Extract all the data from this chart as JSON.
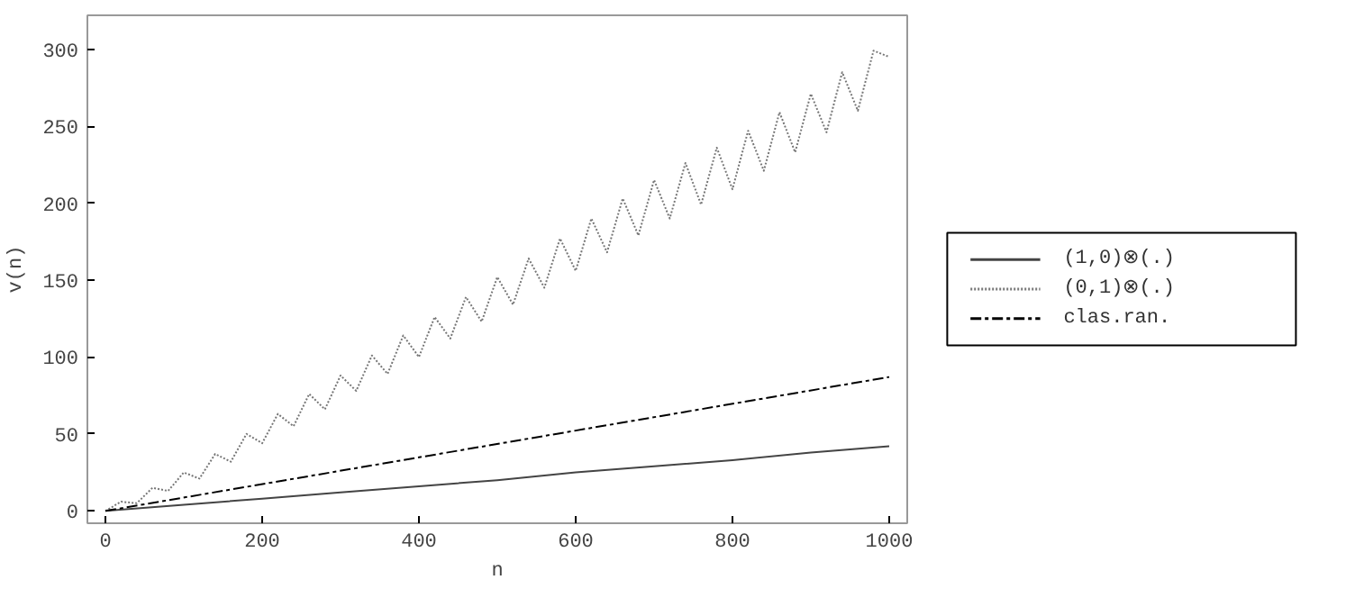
{
  "chart_data": {
    "type": "line",
    "xlabel": "n",
    "ylabel": "v(n)",
    "xlim": [
      -23,
      1023
    ],
    "ylim": [
      -8,
      322
    ],
    "xticks": [
      0,
      200,
      400,
      600,
      800,
      1000
    ],
    "yticks": [
      0,
      50,
      100,
      150,
      200,
      250,
      300
    ],
    "grid": false,
    "legend": "right",
    "marker": "none",
    "series": [
      {
        "name": "(1,0)⊗(.)",
        "color": "#444444",
        "line_style": "solid",
        "x": [
          0,
          100,
          200,
          300,
          400,
          500,
          600,
          700,
          800,
          900,
          1000
        ],
        "values": [
          0,
          4,
          8,
          12,
          16,
          20,
          25,
          29,
          33,
          38,
          42
        ]
      },
      {
        "name": "(0,1)⊗(.)",
        "color": "#777777",
        "line_style": "dotted",
        "x": [
          0,
          20,
          40,
          60,
          80,
          100,
          120,
          140,
          160,
          180,
          200,
          220,
          240,
          260,
          280,
          300,
          320,
          340,
          360,
          380,
          400,
          420,
          440,
          460,
          480,
          500,
          520,
          540,
          560,
          580,
          600,
          620,
          640,
          660,
          680,
          700,
          720,
          740,
          760,
          780,
          800,
          820,
          840,
          860,
          880,
          900,
          920,
          940,
          960,
          980,
          1000
        ],
        "values": [
          0,
          6,
          5,
          15,
          13,
          25,
          21,
          37,
          32,
          50,
          44,
          63,
          55,
          76,
          66,
          88,
          78,
          101,
          89,
          114,
          100,
          126,
          112,
          139,
          123,
          152,
          134,
          164,
          145,
          177,
          156,
          190,
          168,
          203,
          179,
          215,
          190,
          226,
          199,
          236,
          209,
          247,
          221,
          259,
          233,
          271,
          246,
          285,
          260,
          299,
          295
        ]
      },
      {
        "name": "clas.ran.",
        "color": "#000000",
        "line_style": "dashdot",
        "x": [
          0,
          1000
        ],
        "values": [
          0,
          87
        ]
      }
    ]
  }
}
